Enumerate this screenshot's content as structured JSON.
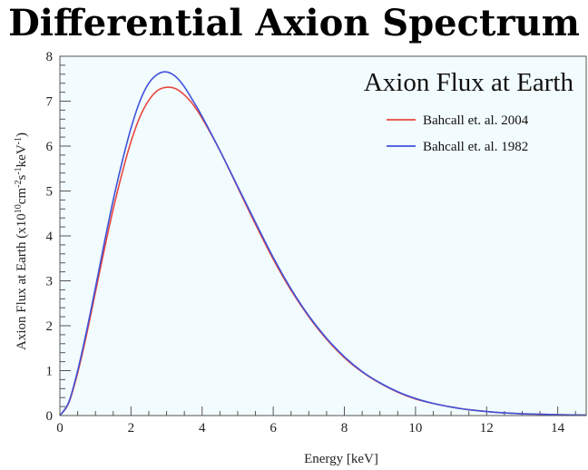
{
  "page_title": "Differential Axion Spectrum",
  "chart_data": {
    "type": "line",
    "title": "Axion Flux at Earth",
    "xlabel": "Energy [keV]",
    "ylabel_main": "Axion Flux at Earth (x10",
    "ylabel_exp1": "10",
    "ylabel_mid1": "cm",
    "ylabel_exp2": "-2",
    "ylabel_mid2": "s",
    "ylabel_exp3": "-1",
    "ylabel_mid3": "keV",
    "ylabel_exp4": "-1",
    "ylabel_end": ")",
    "xlim": [
      0,
      14.8
    ],
    "ylim": [
      0,
      8
    ],
    "x_ticks": [
      0,
      2,
      4,
      6,
      8,
      10,
      12,
      14
    ],
    "x_tick_labels": [
      "0",
      "2",
      "4",
      "6",
      "8",
      "10",
      "12",
      "14"
    ],
    "y_ticks": [
      0,
      1,
      2,
      3,
      4,
      5,
      6,
      7,
      8
    ],
    "y_tick_labels": [
      "0",
      "1",
      "2",
      "3",
      "4",
      "5",
      "6",
      "7",
      "8"
    ],
    "legend_position": "top-right",
    "background_color": "#f2fbfd",
    "series": [
      {
        "name": "Bahcall et. al. 2004",
        "color": "#e8473f",
        "x": [
          0,
          0.25,
          0.5,
          0.75,
          1.0,
          1.25,
          1.5,
          1.75,
          2.0,
          2.25,
          2.5,
          2.75,
          3.0,
          3.25,
          3.5,
          3.75,
          4.0,
          4.5,
          5.0,
          5.5,
          6.0,
          6.5,
          7.0,
          7.5,
          8.0,
          8.5,
          9.0,
          9.5,
          10.0,
          10.5,
          11.0,
          11.5,
          12.0,
          12.5,
          13.0,
          13.5,
          14.0,
          14.8
        ],
        "y": [
          0,
          0.28,
          0.95,
          1.8,
          2.75,
          3.7,
          4.6,
          5.4,
          6.1,
          6.65,
          7.02,
          7.24,
          7.31,
          7.28,
          7.14,
          6.92,
          6.62,
          5.9,
          5.08,
          4.26,
          3.48,
          2.79,
          2.2,
          1.7,
          1.29,
          0.97,
          0.72,
          0.52,
          0.37,
          0.27,
          0.19,
          0.13,
          0.09,
          0.06,
          0.04,
          0.03,
          0.02,
          0.01
        ]
      },
      {
        "name": "Bahcall et. al. 1982",
        "color": "#3f52d9",
        "x": [
          0,
          0.25,
          0.5,
          0.75,
          1.0,
          1.25,
          1.5,
          1.75,
          2.0,
          2.25,
          2.5,
          2.75,
          3.0,
          3.25,
          3.5,
          3.75,
          4.0,
          4.5,
          5.0,
          5.5,
          6.0,
          6.5,
          7.0,
          7.5,
          8.0,
          8.5,
          9.0,
          9.5,
          10.0,
          10.5,
          11.0,
          11.5,
          12.0,
          12.5,
          13.0,
          13.5,
          14.0,
          14.8
        ],
        "y": [
          0,
          0.3,
          1.0,
          1.88,
          2.85,
          3.85,
          4.8,
          5.65,
          6.4,
          7.0,
          7.4,
          7.6,
          7.65,
          7.55,
          7.32,
          7.0,
          6.66,
          5.9,
          5.1,
          4.3,
          3.52,
          2.82,
          2.22,
          1.72,
          1.31,
          0.98,
          0.73,
          0.53,
          0.38,
          0.27,
          0.19,
          0.13,
          0.09,
          0.06,
          0.04,
          0.03,
          0.02,
          0.01
        ]
      }
    ]
  }
}
